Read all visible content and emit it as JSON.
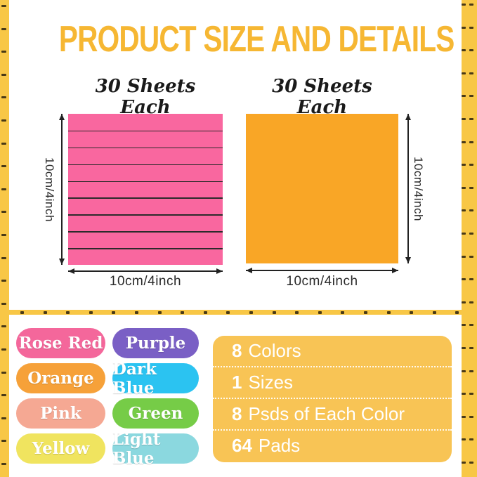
{
  "title": "PRODUCT SIZE AND DETAILS",
  "palette": {
    "border_yellow": "#F8C746",
    "tick_dark": "#4A3A16",
    "title_yellow": "#F6B733",
    "details_box_bg": "#F8C455",
    "dimension_text": "#2A2A2A",
    "sheet_line": "#2B2B2B"
  },
  "pads": [
    {
      "heading": "30 Sheets Each",
      "color": "#F9679F",
      "color_name": "pink",
      "sheet_lines": 8,
      "height_label": "10cm/4inch",
      "width_label": "10cm/4inch"
    },
    {
      "heading": "30 Sheets Each",
      "color": "#F9A626",
      "color_name": "orange",
      "sheet_lines": 0,
      "height_label": "10cm/4inch",
      "width_label": "10cm/4inch"
    }
  ],
  "swatches": [
    {
      "label": "Rose Red",
      "color": "#F4679B"
    },
    {
      "label": "Purple",
      "color": "#7A5FC5"
    },
    {
      "label": "Orange",
      "color": "#F6A139"
    },
    {
      "label": "Dark Blue",
      "color": "#2BC3F1"
    },
    {
      "label": "Pink",
      "color": "#F5A893"
    },
    {
      "label": "Green",
      "color": "#76CC47"
    },
    {
      "label": "Yellow",
      "color": "#F0E45F"
    },
    {
      "label": "Light Blue",
      "color": "#8BD8DF"
    }
  ],
  "details": [
    {
      "number": "8",
      "label": "Colors"
    },
    {
      "number": "1",
      "label": "Sizes"
    },
    {
      "number": "8",
      "label": "Psds of Each Color"
    },
    {
      "number": "64",
      "label": "Pads"
    }
  ]
}
